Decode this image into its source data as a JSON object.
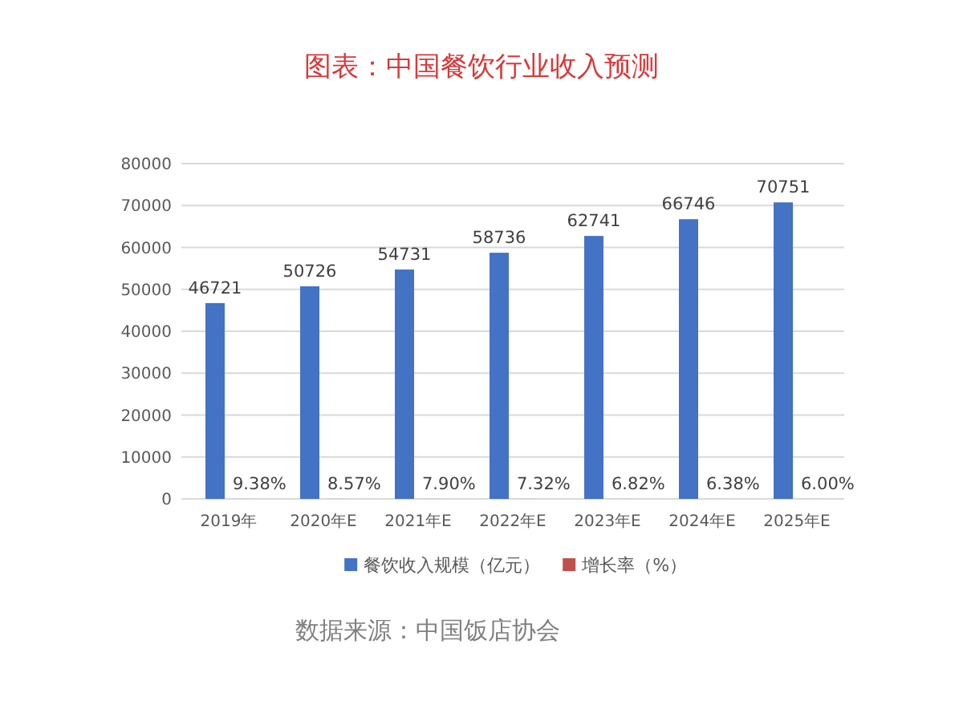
{
  "chart_data": {
    "type": "bar",
    "title": "图表：中国餐饮行业收入预测",
    "categories": [
      "2019年",
      "2020年E",
      "2021年E",
      "2022年E",
      "2023年E",
      "2024年E",
      "2025年E"
    ],
    "series": [
      {
        "name": "餐饮收入规模（亿元）",
        "color": "#4472c4",
        "values": [
          46721,
          50726,
          54731,
          58736,
          62741,
          66746,
          70751
        ]
      },
      {
        "name": "增长率（%）",
        "color": "#c0504d",
        "values": [
          9.38,
          8.57,
          7.9,
          7.32,
          6.82,
          6.38,
          6.0
        ],
        "value_labels": [
          "9.38%",
          "8.57%",
          "7.90%",
          "7.32%",
          "6.82%",
          "6.38%",
          "6.00%"
        ]
      }
    ],
    "ylim": [
      0,
      80000
    ],
    "yticks": [
      0,
      10000,
      20000,
      30000,
      40000,
      50000,
      60000,
      70000,
      80000
    ],
    "grid": "y",
    "legend": "bottom",
    "data_labels": true,
    "annotations": [
      "数据来源：中国饭店协会"
    ]
  }
}
